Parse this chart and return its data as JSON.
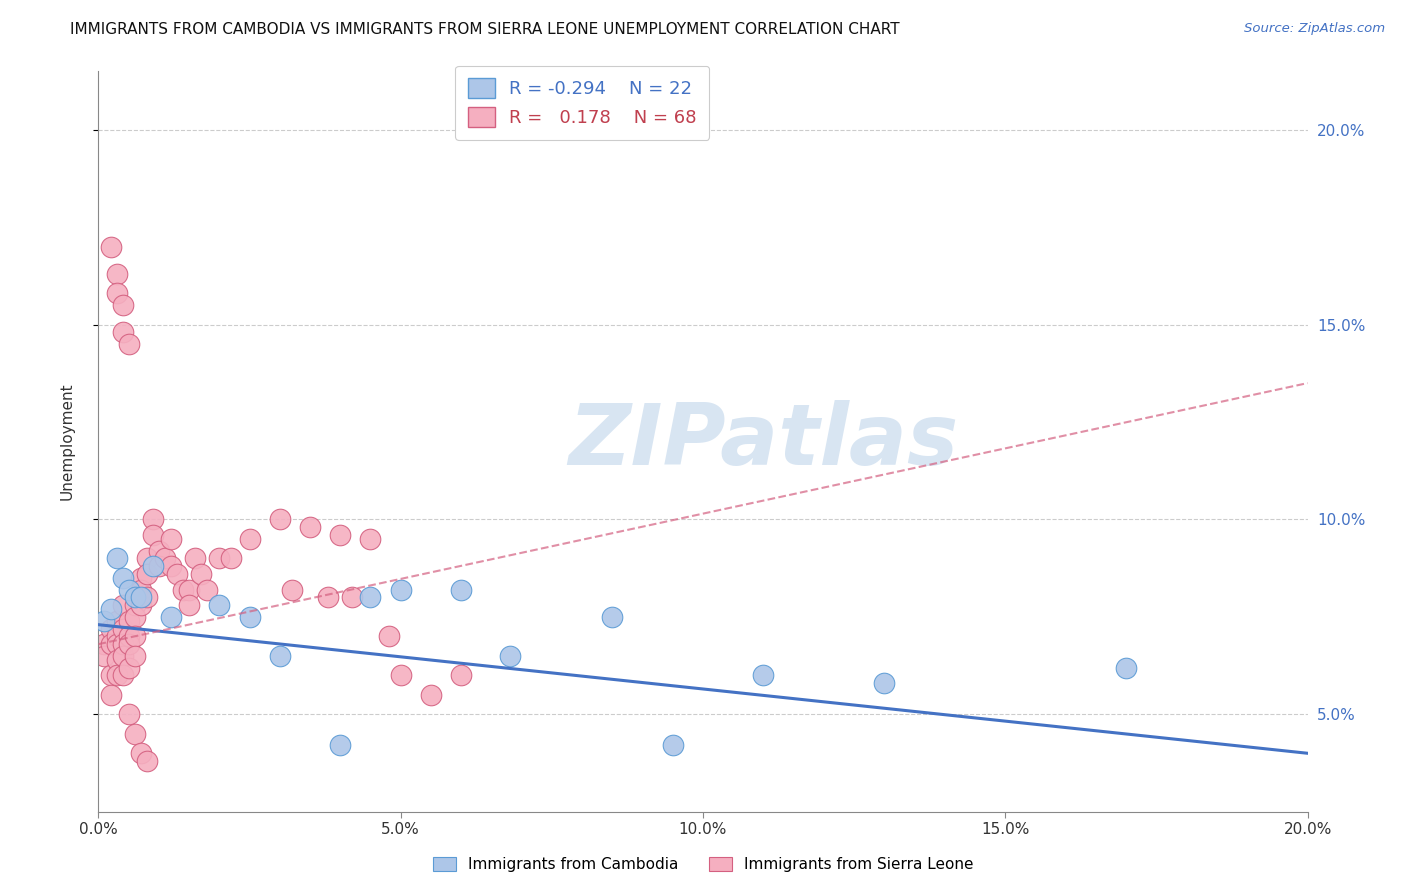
{
  "title": "IMMIGRANTS FROM CAMBODIA VS IMMIGRANTS FROM SIERRA LEONE UNEMPLOYMENT CORRELATION CHART",
  "source": "Source: ZipAtlas.com",
  "ylabel": "Unemployment",
  "x_min": 0.0,
  "x_max": 0.2,
  "y_min": 0.025,
  "y_max": 0.215,
  "cambodia_color": "#adc6e8",
  "sierra_leone_color": "#f5afc0",
  "cambodia_edge": "#5b9bd5",
  "sierra_leone_edge": "#d46080",
  "line_cambodia_color": "#4472c4",
  "line_sierra_leone_color": "#d46080",
  "legend_r_cambodia": "-0.294",
  "legend_n_cambodia": "22",
  "legend_r_sierra_leone": "0.178",
  "legend_n_sierra_leone": "68",
  "watermark_text": "ZIPatlas",
  "cam_line_y0": 0.073,
  "cam_line_y1": 0.04,
  "sl_line_y0": 0.068,
  "sl_line_y1": 0.135,
  "title_fontsize": 11,
  "source_fontsize": 9.5,
  "tick_fontsize": 11,
  "watermark_fontsize": 62,
  "cam_x": [
    0.001,
    0.002,
    0.003,
    0.004,
    0.005,
    0.006,
    0.007,
    0.009,
    0.012,
    0.02,
    0.025,
    0.03,
    0.04,
    0.045,
    0.05,
    0.06,
    0.068,
    0.085,
    0.095,
    0.11,
    0.13,
    0.17
  ],
  "cam_y": [
    0.074,
    0.077,
    0.09,
    0.085,
    0.082,
    0.08,
    0.08,
    0.088,
    0.075,
    0.078,
    0.075,
    0.065,
    0.042,
    0.08,
    0.082,
    0.082,
    0.065,
    0.075,
    0.042,
    0.06,
    0.058,
    0.062
  ],
  "sl_x": [
    0.001,
    0.001,
    0.002,
    0.002,
    0.002,
    0.002,
    0.003,
    0.003,
    0.003,
    0.003,
    0.003,
    0.004,
    0.004,
    0.004,
    0.004,
    0.004,
    0.005,
    0.005,
    0.005,
    0.005,
    0.006,
    0.006,
    0.006,
    0.006,
    0.007,
    0.007,
    0.007,
    0.008,
    0.008,
    0.008,
    0.009,
    0.009,
    0.01,
    0.01,
    0.011,
    0.012,
    0.012,
    0.013,
    0.014,
    0.015,
    0.015,
    0.016,
    0.017,
    0.018,
    0.02,
    0.022,
    0.025,
    0.03,
    0.032,
    0.035,
    0.038,
    0.04,
    0.042,
    0.045,
    0.048,
    0.05,
    0.055,
    0.06,
    0.002,
    0.003,
    0.003,
    0.004,
    0.004,
    0.005,
    0.005,
    0.006,
    0.007,
    0.008
  ],
  "sl_y": [
    0.068,
    0.065,
    0.072,
    0.068,
    0.06,
    0.055,
    0.074,
    0.07,
    0.068,
    0.064,
    0.06,
    0.078,
    0.072,
    0.068,
    0.065,
    0.06,
    0.074,
    0.07,
    0.068,
    0.062,
    0.078,
    0.075,
    0.07,
    0.065,
    0.085,
    0.082,
    0.078,
    0.09,
    0.086,
    0.08,
    0.1,
    0.096,
    0.092,
    0.088,
    0.09,
    0.095,
    0.088,
    0.086,
    0.082,
    0.082,
    0.078,
    0.09,
    0.086,
    0.082,
    0.09,
    0.09,
    0.095,
    0.1,
    0.082,
    0.098,
    0.08,
    0.096,
    0.08,
    0.095,
    0.07,
    0.06,
    0.055,
    0.06,
    0.17,
    0.163,
    0.158,
    0.155,
    0.148,
    0.145,
    0.05,
    0.045,
    0.04,
    0.038
  ]
}
